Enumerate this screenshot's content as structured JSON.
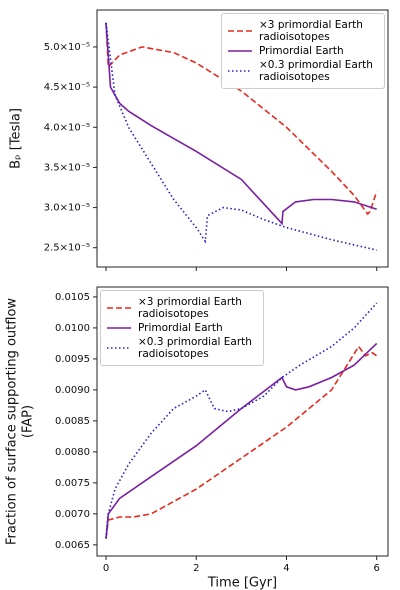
{
  "chart_data": [
    {
      "type": "line",
      "ylabel": "Bₚ [Tesla]",
      "xlim": [
        -0.2,
        6.25
      ],
      "xticks": [
        0,
        2,
        4,
        6
      ],
      "ylim": [
        2.26e-05,
        5.46e-05
      ],
      "yticks": [
        {
          "value": 2.5e-05,
          "label": "2.5×10⁻⁵"
        },
        {
          "value": 3e-05,
          "label": "3.0×10⁻⁵"
        },
        {
          "value": 3.5e-05,
          "label": "3.5×10⁻⁵"
        },
        {
          "value": 4e-05,
          "label": "4.0×10⁻⁵"
        },
        {
          "value": 4.5e-05,
          "label": "4.5×10⁻⁵"
        },
        {
          "value": 5e-05,
          "label": "5.0×10⁻⁵"
        }
      ],
      "legend": "upper right",
      "series": [
        {
          "name": "×3 primordial Earth radioisotopes",
          "color": "#e8291c",
          "linestyle": "dashed",
          "x": [
            0,
            0.05,
            0.3,
            0.8,
            1.5,
            2,
            3,
            4,
            5,
            5.5,
            5.8,
            5.85,
            6
          ],
          "values": [
            5.3e-05,
            4.75e-05,
            4.9e-05,
            5e-05,
            4.93e-05,
            4.8e-05,
            4.45e-05,
            4e-05,
            3.45e-05,
            3.15e-05,
            2.92e-05,
            2.95e-05,
            3.2e-05
          ]
        },
        {
          "name": "Primordial Earth",
          "color": "#7a1fa0",
          "linestyle": "solid",
          "x": [
            0,
            0.1,
            0.3,
            0.5,
            1,
            2,
            3,
            3.9,
            3.92,
            4.2,
            4.6,
            5,
            5.5,
            6
          ],
          "values": [
            5.3e-05,
            4.5e-05,
            4.3e-05,
            4.2e-05,
            4.02e-05,
            3.7e-05,
            3.35e-05,
            2.8e-05,
            2.95e-05,
            3.07e-05,
            3.1e-05,
            3.1e-05,
            3.07e-05,
            2.98e-05
          ]
        },
        {
          "name": "×0.3 primordial Earth radioisotopes",
          "color": "#2020d0",
          "linestyle": "dotted",
          "x": [
            0,
            0.2,
            0.5,
            1,
            1.5,
            2,
            2.2,
            2.25,
            2.6,
            3,
            3.5,
            4,
            5,
            6
          ],
          "values": [
            5.3e-05,
            4.4e-05,
            4e-05,
            3.55e-05,
            3.1e-05,
            2.75e-05,
            2.58e-05,
            2.9e-05,
            3e-05,
            2.97e-05,
            2.85e-05,
            2.75e-05,
            2.6e-05,
            2.47e-05
          ]
        }
      ]
    },
    {
      "type": "line",
      "ylabel": [
        "Fraction of surface supporting outflow",
        "(FAP)"
      ],
      "xlabel": "Time [Gyr]",
      "xlim": [
        -0.2,
        6.25
      ],
      "xticks": [
        0,
        2,
        4,
        6
      ],
      "ylim": [
        0.00632,
        0.01066
      ],
      "yticks": [
        0.0065,
        {
          "value": 0.007,
          "label": "0.0070"
        },
        0.0075,
        {
          "value": 0.008,
          "label": "0.0080"
        },
        0.0085,
        {
          "value": 0.009,
          "label": "0.0090"
        },
        0.0095,
        {
          "value": 0.01,
          "label": "0.0100"
        },
        0.0105
      ],
      "legend": "upper left",
      "series": [
        {
          "name": "×3 primordial Earth radioisotopes",
          "color": "#e8291c",
          "linestyle": "dashed",
          "x": [
            0,
            0.05,
            0.3,
            0.6,
            1,
            2,
            3,
            4,
            5,
            5.6,
            5.75,
            5.9,
            6
          ],
          "values": [
            0.0066,
            0.0069,
            0.00695,
            0.00695,
            0.007,
            0.0074,
            0.0079,
            0.0084,
            0.009,
            0.0097,
            0.00955,
            0.0096,
            0.00955
          ]
        },
        {
          "name": "Primordial Earth",
          "color": "#7a1fa0",
          "linestyle": "solid",
          "x": [
            0,
            0.05,
            0.3,
            1,
            2,
            3,
            3.9,
            4.0,
            4.2,
            4.5,
            5,
            5.5,
            6
          ],
          "values": [
            0.0066,
            0.007,
            0.00725,
            0.0076,
            0.0081,
            0.0087,
            0.0092,
            0.00905,
            0.009,
            0.00905,
            0.0092,
            0.0094,
            0.00975
          ]
        },
        {
          "name": "×0.3 primordial Earth radioisotopes",
          "color": "#2020d0",
          "linestyle": "dotted",
          "x": [
            0,
            0.05,
            0.2,
            0.5,
            1,
            1.5,
            2,
            2.2,
            2.4,
            2.7,
            3,
            3.5,
            3.9,
            4.3,
            5,
            5.5,
            6
          ],
          "values": [
            0.0066,
            0.007,
            0.0074,
            0.0078,
            0.0083,
            0.0087,
            0.0089,
            0.009,
            0.0087,
            0.00865,
            0.0087,
            0.0089,
            0.0092,
            0.0094,
            0.0097,
            0.01,
            0.0104
          ]
        }
      ]
    }
  ]
}
